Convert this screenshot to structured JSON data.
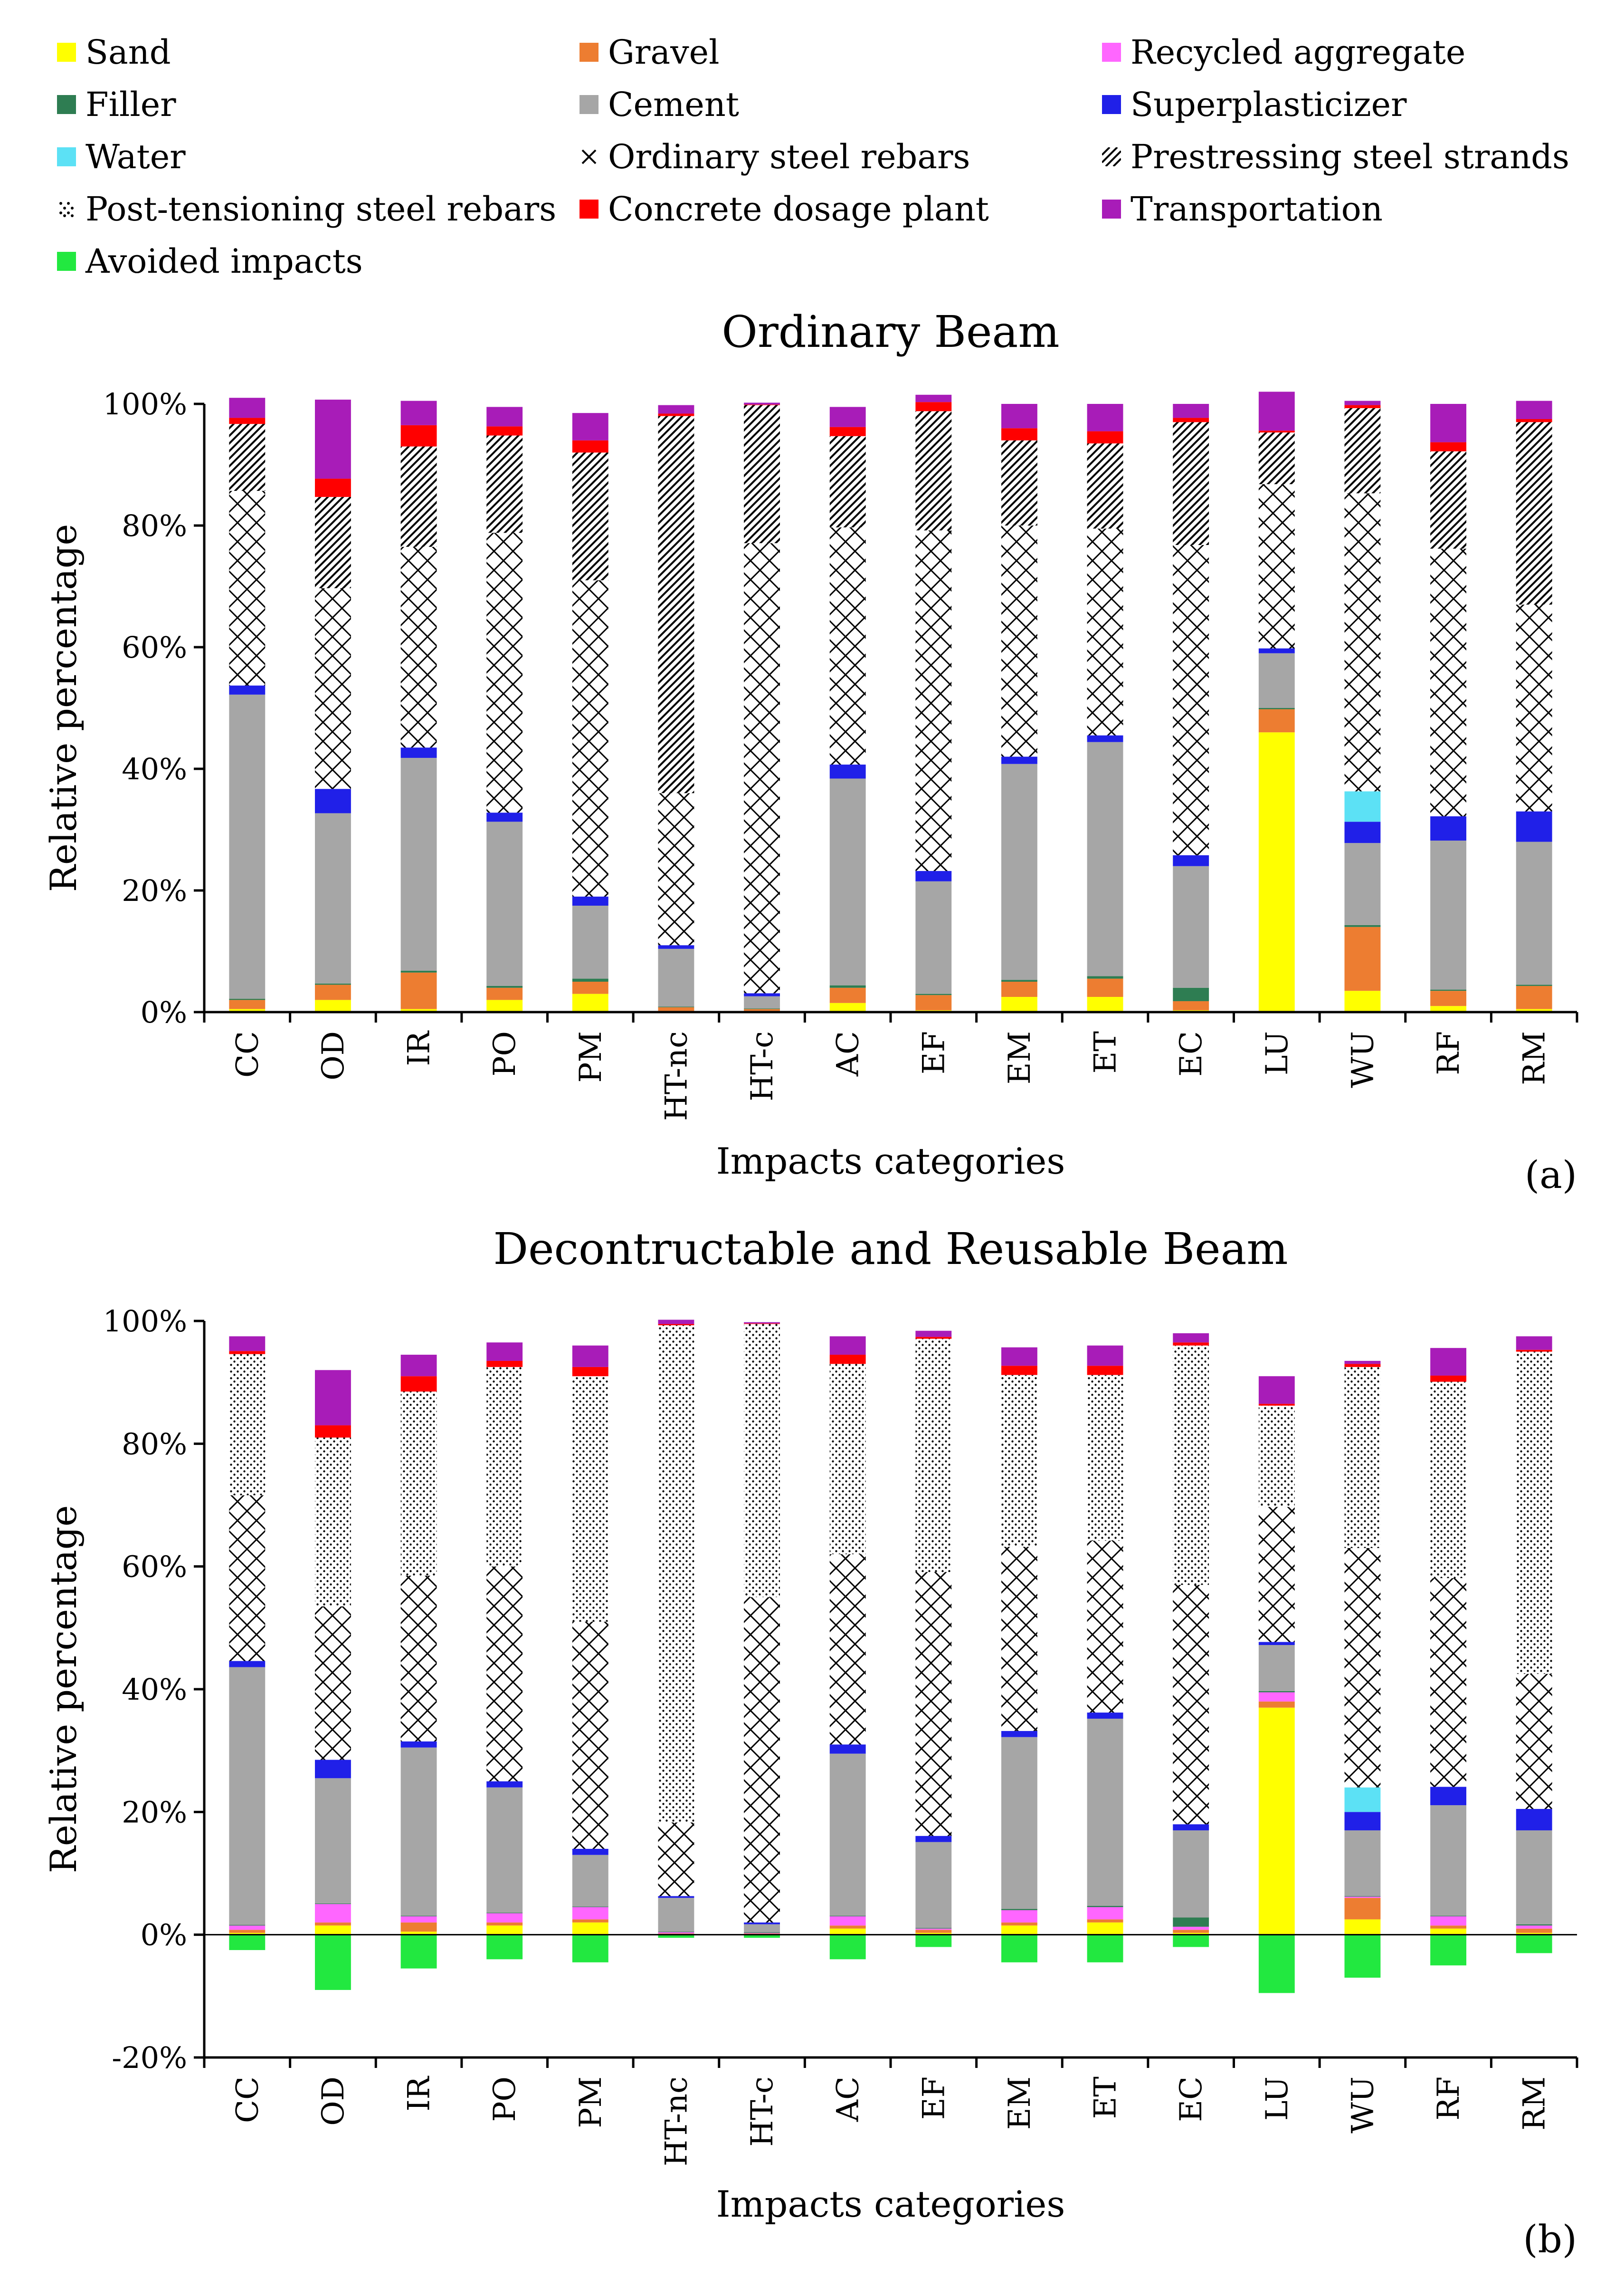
{
  "legend": [
    {
      "key": "sand",
      "label": "Sand",
      "color": "#ffff00",
      "pattern": "solid"
    },
    {
      "key": "gravel",
      "label": "Gravel",
      "color": "#ed7d31",
      "pattern": "solid"
    },
    {
      "key": "recycled",
      "label": "Recycled aggregate",
      "color": "#ff66ff",
      "pattern": "solid"
    },
    {
      "key": "filler",
      "label": "Filler",
      "color": "#2e7d52",
      "pattern": "solid"
    },
    {
      "key": "cement",
      "label": "Cement",
      "color": "#a6a6a6",
      "pattern": "solid"
    },
    {
      "key": "superplasticizer",
      "label": "Superplasticizer",
      "color": "#2020e8",
      "pattern": "solid"
    },
    {
      "key": "water",
      "label": "Water",
      "color": "#5ce1f5",
      "pattern": "solid"
    },
    {
      "key": "ordinary",
      "label": "Ordinary steel rebars",
      "color": "#000000",
      "pattern": "cross"
    },
    {
      "key": "prestressing",
      "label": "Prestressing steel strands",
      "color": "#000000",
      "pattern": "diag"
    },
    {
      "key": "posttension",
      "label": "Post-tensioning steel rebars",
      "color": "#000000",
      "pattern": "dots"
    },
    {
      "key": "plant",
      "label": "Concrete dosage plant",
      "color": "#ff0000",
      "pattern": "solid"
    },
    {
      "key": "transport",
      "label": "Transportation",
      "color": "#a81cb8",
      "pattern": "solid"
    },
    {
      "key": "avoided",
      "label": "Avoided impacts",
      "color": "#22e840",
      "pattern": "solid"
    }
  ],
  "chart_data": [
    {
      "type": "bar",
      "stacked": true,
      "panel": "(a)",
      "title": "Ordinary Beam",
      "xlabel": "Impacts categories",
      "ylabel": "Relative percentage",
      "ylim": [
        0,
        100
      ],
      "yticks": [
        0,
        20,
        40,
        60,
        80,
        100
      ],
      "ytick_labels": [
        "0%",
        "20%",
        "40%",
        "60%",
        "80%",
        "100%"
      ],
      "categories": [
        "CC",
        "OD",
        "IR",
        "PO",
        "PM",
        "HT-nc",
        "HT-c",
        "AC",
        "EF",
        "EM",
        "ET",
        "EC",
        "LU",
        "WU",
        "RF",
        "RM"
      ],
      "series": [
        {
          "key": "sand",
          "values": [
            0.5,
            2,
            0.5,
            2,
            3,
            0.2,
            0.2,
            1.5,
            0.3,
            2.5,
            2.5,
            0.3,
            46,
            3.5,
            1,
            0.5
          ]
        },
        {
          "key": "gravel",
          "values": [
            1.5,
            2.5,
            6,
            2,
            2,
            0.6,
            0.3,
            2.5,
            2.5,
            2.5,
            3,
            1.5,
            3.8,
            10.5,
            2.5,
            3.8
          ]
        },
        {
          "key": "filler",
          "values": [
            0.2,
            0.2,
            0.3,
            0.3,
            0.5,
            0.1,
            0.1,
            0.4,
            0.2,
            0.3,
            0.4,
            2.2,
            0.2,
            0.3,
            0.2,
            0.2
          ]
        },
        {
          "key": "cement",
          "values": [
            50,
            28,
            35,
            27,
            12,
            9.5,
            2,
            34,
            18.5,
            35.5,
            38.5,
            20,
            9,
            13.5,
            24.5,
            23.5
          ]
        },
        {
          "key": "superplasticizer",
          "values": [
            1.5,
            4,
            1.7,
            1.5,
            1.5,
            0.6,
            0.5,
            2.3,
            1.7,
            1.2,
            1.1,
            1.8,
            0.8,
            3.5,
            4,
            5
          ]
        },
        {
          "key": "water",
          "values": [
            0,
            0,
            0,
            0,
            0,
            0,
            0,
            0,
            0,
            0,
            0,
            0,
            0,
            5,
            0,
            0
          ]
        },
        {
          "key": "ordinary",
          "values": [
            32,
            33,
            33,
            46,
            52,
            25,
            74,
            39,
            56,
            38,
            34,
            51,
            27,
            49,
            44,
            34
          ]
        },
        {
          "key": "prestressing",
          "values": [
            11,
            15,
            16.5,
            16,
            21,
            62,
            22.7,
            15,
            19.6,
            14,
            14,
            20.2,
            8.5,
            14,
            16,
            30
          ]
        },
        {
          "key": "plant",
          "values": [
            1,
            3,
            3.5,
            1.5,
            2,
            0.4,
            0.1,
            1.5,
            1.5,
            2,
            2,
            0.7,
            0.3,
            0.5,
            1.5,
            0.5
          ]
        },
        {
          "key": "transport",
          "values": [
            3.3,
            13,
            4,
            3.2,
            4.5,
            1.4,
            0.3,
            3.3,
            1.2,
            4,
            4.5,
            2.3,
            6.4,
            0.7,
            6.3,
            3
          ]
        }
      ]
    },
    {
      "type": "bar",
      "stacked": true,
      "panel": "(b)",
      "title": "Decontructable and Reusable Beam",
      "xlabel": "Impacts categories",
      "ylabel": "Relative percentage",
      "ylim": [
        -20,
        100
      ],
      "yticks": [
        -20,
        0,
        20,
        40,
        60,
        80,
        100
      ],
      "ytick_labels": [
        "-20%",
        "0%",
        "20%",
        "40%",
        "60%",
        "80%",
        "100%"
      ],
      "categories": [
        "CC",
        "OD",
        "IR",
        "PO",
        "PM",
        "HT-nc",
        "HT-c",
        "AC",
        "EF",
        "EM",
        "ET",
        "EC",
        "LU",
        "WU",
        "RF",
        "RM"
      ],
      "series": [
        {
          "key": "sand",
          "values": [
            0.3,
            1.5,
            0.5,
            1.5,
            2,
            0.1,
            0.1,
            1,
            0.3,
            1.5,
            2,
            0.3,
            37,
            2.5,
            1,
            0.3
          ]
        },
        {
          "key": "gravel",
          "values": [
            0.5,
            0.5,
            1.5,
            0.5,
            0.5,
            0.1,
            0.1,
            0.5,
            0.5,
            0.5,
            0.5,
            0.5,
            1,
            3.5,
            0.5,
            0.7
          ]
        },
        {
          "key": "recycled",
          "values": [
            0.7,
            3,
            1,
            1.5,
            2,
            0.2,
            0.1,
            1.5,
            0.2,
            2,
            2,
            0.5,
            1.5,
            0.2,
            1.5,
            0.5
          ]
        },
        {
          "key": "filler",
          "values": [
            0.1,
            0.1,
            0.1,
            0.1,
            0.1,
            0.1,
            0.1,
            0.1,
            0.1,
            0.2,
            0.2,
            1.5,
            0.2,
            0.1,
            0.1,
            0.2
          ]
        },
        {
          "key": "cement",
          "values": [
            42,
            20.4,
            27.4,
            20.4,
            8.4,
            5.5,
            1.3,
            26.4,
            14,
            28,
            30.5,
            14.2,
            7.5,
            10.7,
            18,
            15.3
          ]
        },
        {
          "key": "superplasticizer",
          "values": [
            1,
            3,
            1,
            1,
            1,
            0.3,
            0.3,
            1.5,
            1,
            1,
            1,
            1,
            0.5,
            3,
            3,
            3.5
          ]
        },
        {
          "key": "water",
          "values": [
            0,
            0,
            0,
            0,
            0,
            0,
            0,
            0,
            0,
            0,
            0,
            0,
            0,
            4,
            0,
            0
          ]
        },
        {
          "key": "ordinary",
          "values": [
            27,
            25,
            27,
            35,
            37,
            12,
            53,
            31,
            43,
            30,
            28,
            39,
            22,
            39,
            34,
            22
          ]
        },
        {
          "key": "posttension",
          "values": [
            23,
            27.5,
            30,
            32.5,
            40,
            81,
            44.5,
            31,
            38,
            28,
            27,
            39,
            16.5,
            29.5,
            32,
            52.5
          ]
        },
        {
          "key": "plant",
          "values": [
            0.5,
            2,
            2.5,
            1,
            1.5,
            0.2,
            0.1,
            1.5,
            0.3,
            1.5,
            1.5,
            0.5,
            0.3,
            0.5,
            1,
            0.3
          ]
        },
        {
          "key": "transport",
          "values": [
            2.4,
            9,
            3.5,
            3,
            3.5,
            0.7,
            0.2,
            3,
            1,
            3,
            3.3,
            1.5,
            4.5,
            0.5,
            4.5,
            2.2
          ]
        },
        {
          "key": "avoided",
          "values": [
            -2.5,
            -9,
            -5.5,
            -4,
            -4.5,
            -0.5,
            -0.5,
            -4,
            -2,
            -4.5,
            -4.5,
            -2,
            -9.5,
            -7,
            -5,
            -3
          ]
        }
      ]
    }
  ]
}
